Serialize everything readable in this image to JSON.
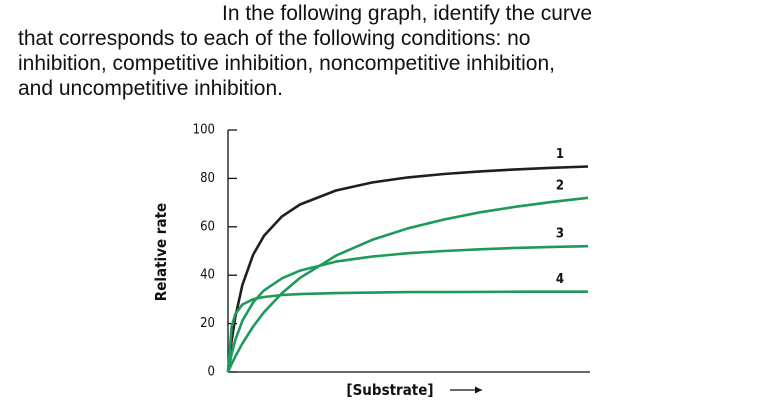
{
  "question": [
    "In the following graph, identify the curve",
    "that corresponds to each of the following conditions: no",
    "inhibition, competitive inhibition, noncompetitive inhibition,",
    "and uncompetitive inhibition."
  ],
  "chart_data": {
    "type": "line",
    "x_label": "[Substrate]",
    "y_label": "Relative rate",
    "x": [
      0,
      0.01,
      0.02,
      0.04,
      0.07,
      0.1,
      0.15,
      0.2,
      0.3,
      0.4,
      0.5,
      0.6,
      0.7,
      0.8,
      0.9,
      1
    ],
    "xlim": [
      0,
      1
    ],
    "ylim": [
      0,
      100
    ],
    "yticks": [
      0,
      20,
      40,
      60,
      80,
      100
    ],
    "grid": false,
    "series": [
      {
        "name": "1",
        "color": "#1f1f1f",
        "values": [
          0,
          12.9,
          22.5,
          36,
          48.5,
          56.3,
          64.3,
          69.2,
          75,
          78.3,
          80.4,
          81.8,
          82.9,
          83.7,
          84.4,
          84.9
        ]
      },
      {
        "name": "2",
        "color": "#1f9a5c",
        "values": [
          0,
          3.3,
          6.3,
          11.8,
          18.8,
          24.7,
          32.6,
          38.9,
          48.1,
          54.6,
          59.4,
          63,
          66,
          68.3,
          70.3,
          72
        ]
      },
      {
        "name": "3",
        "color": "#1f9a5c",
        "values": [
          0,
          7.4,
          13.1,
          21.2,
          28.8,
          33.7,
          38.7,
          41.9,
          45.6,
          47.7,
          49.1,
          50,
          50.7,
          51.3,
          51.7,
          52
        ]
      },
      {
        "name": "4",
        "color": "#1f9a5c",
        "values": [
          0,
          18.6,
          23.9,
          27.9,
          30.1,
          31,
          31.8,
          32.2,
          32.6,
          32.8,
          33,
          33,
          33.1,
          33.2,
          33.2,
          33.2
        ]
      }
    ]
  }
}
